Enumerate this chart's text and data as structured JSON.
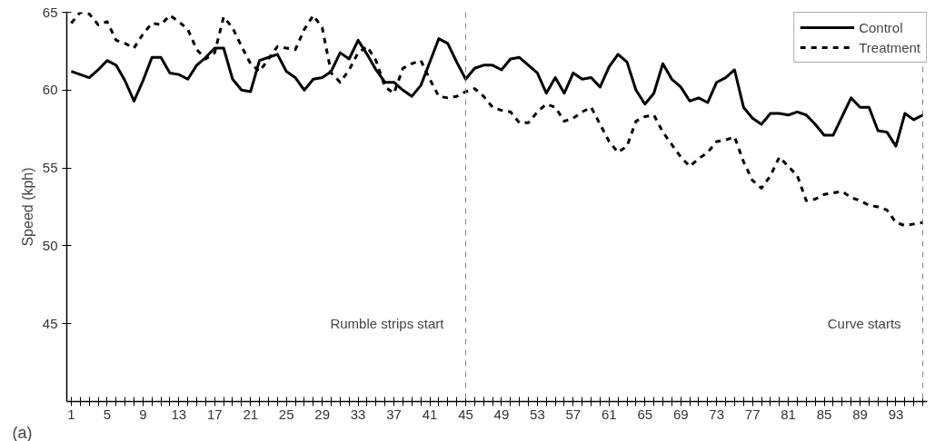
{
  "chart_data": {
    "type": "line",
    "ylabel": "Speed (kph)",
    "x": [
      1,
      2,
      3,
      4,
      5,
      6,
      7,
      8,
      9,
      10,
      11,
      12,
      13,
      14,
      15,
      16,
      17,
      18,
      19,
      20,
      21,
      22,
      23,
      24,
      25,
      26,
      27,
      28,
      29,
      30,
      31,
      32,
      33,
      34,
      35,
      36,
      37,
      38,
      39,
      40,
      41,
      42,
      43,
      44,
      45,
      46,
      47,
      48,
      49,
      50,
      51,
      52,
      53,
      54,
      55,
      56,
      57,
      58,
      59,
      60,
      61,
      62,
      63,
      64,
      65,
      66,
      67,
      68,
      69,
      70,
      71,
      72,
      73,
      74,
      75,
      76,
      77,
      78,
      79,
      80,
      81,
      82,
      83,
      84,
      85,
      86,
      87,
      88,
      89,
      90,
      91,
      92,
      93,
      94,
      95,
      96
    ],
    "series": [
      {
        "name": "Control",
        "color": "#000000",
        "line_style": "solid",
        "values": [
          61.2,
          61.0,
          60.8,
          61.3,
          61.9,
          61.6,
          60.6,
          59.3,
          60.6,
          62.1,
          62.1,
          61.1,
          61.0,
          60.7,
          61.6,
          62.1,
          62.7,
          62.7,
          60.7,
          60.0,
          59.9,
          61.9,
          62.1,
          62.3,
          61.2,
          60.8,
          60.0,
          60.7,
          60.8,
          61.2,
          62.4,
          62.0,
          63.2,
          62.3,
          61.3,
          60.5,
          60.5,
          60.0,
          59.6,
          60.3,
          61.8,
          63.3,
          63.0,
          61.8,
          60.7,
          61.4,
          61.6,
          61.6,
          61.3,
          62.0,
          62.1,
          61.6,
          61.1,
          59.8,
          60.8,
          59.8,
          61.1,
          60.7,
          60.8,
          60.2,
          61.5,
          62.3,
          61.8,
          60.0,
          59.1,
          59.8,
          61.7,
          60.7,
          60.2,
          59.3,
          59.5,
          59.2,
          60.5,
          60.8,
          61.3,
          58.9,
          58.2,
          57.8,
          58.5,
          58.5,
          58.4,
          58.6,
          58.4,
          57.8,
          57.1,
          57.1,
          58.3,
          59.5,
          58.9,
          58.9,
          57.4,
          57.3,
          56.4,
          58.5,
          58.1,
          58.4
        ]
      },
      {
        "name": "Treatment",
        "color": "#000000",
        "line_style": "dashed",
        "values": [
          64.3,
          65.0,
          64.9,
          64.2,
          64.4,
          63.2,
          63.0,
          62.7,
          63.6,
          64.3,
          64.2,
          64.8,
          64.4,
          63.9,
          62.6,
          62.0,
          62.4,
          64.7,
          64.0,
          62.8,
          61.7,
          61.2,
          62.0,
          62.8,
          62.7,
          62.6,
          63.9,
          64.8,
          64.0,
          61.1,
          60.5,
          61.3,
          62.4,
          62.8,
          61.9,
          60.2,
          59.8,
          61.4,
          61.7,
          61.9,
          60.7,
          59.6,
          59.5,
          59.6,
          59.9,
          60.1,
          59.6,
          58.9,
          58.7,
          58.6,
          57.9,
          57.9,
          58.6,
          59.1,
          58.9,
          58.0,
          58.2,
          58.6,
          58.9,
          57.8,
          56.7,
          56.0,
          56.4,
          58.0,
          58.3,
          58.4,
          57.3,
          56.5,
          55.7,
          55.1,
          55.6,
          56.0,
          56.7,
          56.8,
          57.0,
          55.4,
          54.2,
          53.7,
          54.5,
          55.7,
          55.1,
          54.5,
          52.9,
          53.0,
          53.3,
          53.4,
          53.5,
          53.1,
          52.9,
          52.6,
          52.5,
          52.3,
          51.5,
          51.3,
          51.4,
          51.5
        ]
      }
    ],
    "xlim": [
      0.5,
      96.5
    ],
    "ylim": [
      40,
      65
    ],
    "yticks": [
      45,
      50,
      55,
      60,
      65
    ],
    "xticks": [
      1,
      {
        "value": 2,
        "label": null
      },
      {
        "value": 3,
        "label": null
      },
      {
        "value": 4,
        "label": null
      },
      5,
      {
        "value": 6,
        "label": null
      },
      {
        "value": 7,
        "label": null
      },
      {
        "value": 8,
        "label": null
      },
      9,
      {
        "value": 10,
        "label": null
      },
      {
        "value": 11,
        "label": null
      },
      {
        "value": 12,
        "label": null
      },
      13,
      {
        "value": 14,
        "label": null
      },
      {
        "value": 15,
        "label": null
      },
      {
        "value": 16,
        "label": null
      },
      17,
      {
        "value": 18,
        "label": null
      },
      {
        "value": 19,
        "label": null
      },
      {
        "value": 20,
        "label": null
      },
      21,
      {
        "value": 22,
        "label": null
      },
      {
        "value": 23,
        "label": null
      },
      {
        "value": 24,
        "label": null
      },
      25,
      {
        "value": 26,
        "label": null
      },
      {
        "value": 27,
        "label": null
      },
      {
        "value": 28,
        "label": null
      },
      29,
      {
        "value": 30,
        "label": null
      },
      {
        "value": 31,
        "label": null
      },
      {
        "value": 32,
        "label": null
      },
      33,
      {
        "value": 34,
        "label": null
      },
      {
        "value": 35,
        "label": null
      },
      {
        "value": 36,
        "label": null
      },
      37,
      {
        "value": 38,
        "label": null
      },
      {
        "value": 39,
        "label": null
      },
      {
        "value": 40,
        "label": null
      },
      41,
      {
        "value": 42,
        "label": null
      },
      {
        "value": 43,
        "label": null
      },
      {
        "value": 44,
        "label": null
      },
      45,
      {
        "value": 46,
        "label": null
      },
      {
        "value": 47,
        "label": null
      },
      {
        "value": 48,
        "label": null
      },
      49,
      {
        "value": 50,
        "label": null
      },
      {
        "value": 51,
        "label": null
      },
      {
        "value": 52,
        "label": null
      },
      53,
      {
        "value": 54,
        "label": null
      },
      {
        "value": 55,
        "label": null
      },
      {
        "value": 56,
        "label": null
      },
      57,
      {
        "value": 58,
        "label": null
      },
      {
        "value": 59,
        "label": null
      },
      {
        "value": 60,
        "label": null
      },
      61,
      {
        "value": 62,
        "label": null
      },
      {
        "value": 63,
        "label": null
      },
      {
        "value": 64,
        "label": null
      },
      65,
      {
        "value": 66,
        "label": null
      },
      {
        "value": 67,
        "label": null
      },
      {
        "value": 68,
        "label": null
      },
      69,
      {
        "value": 70,
        "label": null
      },
      {
        "value": 71,
        "label": null
      },
      {
        "value": 72,
        "label": null
      },
      73,
      {
        "value": 74,
        "label": null
      },
      {
        "value": 75,
        "label": null
      },
      {
        "value": 76,
        "label": null
      },
      77,
      {
        "value": 78,
        "label": null
      },
      {
        "value": 79,
        "label": null
      },
      {
        "value": 80,
        "label": null
      },
      81,
      {
        "value": 82,
        "label": null
      },
      {
        "value": 83,
        "label": null
      },
      {
        "value": 84,
        "label": null
      },
      85,
      {
        "value": 86,
        "label": null
      },
      {
        "value": 87,
        "label": null
      },
      {
        "value": 88,
        "label": null
      },
      89,
      {
        "value": 90,
        "label": null
      },
      {
        "value": 91,
        "label": null
      },
      {
        "value": 92,
        "label": null
      },
      93,
      {
        "value": 94,
        "label": null
      },
      {
        "value": 95,
        "label": null
      },
      {
        "value": 96,
        "label": null
      }
    ],
    "ref_lines": [
      {
        "axis": "x",
        "value": 45,
        "color": "#808080",
        "line_style": "dashed"
      },
      {
        "axis": "x",
        "value": 96,
        "color": "#808080",
        "line_style": "dashed"
      }
    ],
    "annotations": [
      "Rumble strips start",
      "Curve starts",
      "(a)"
    ],
    "grid": false,
    "legend": "top right",
    "marker": "none"
  }
}
